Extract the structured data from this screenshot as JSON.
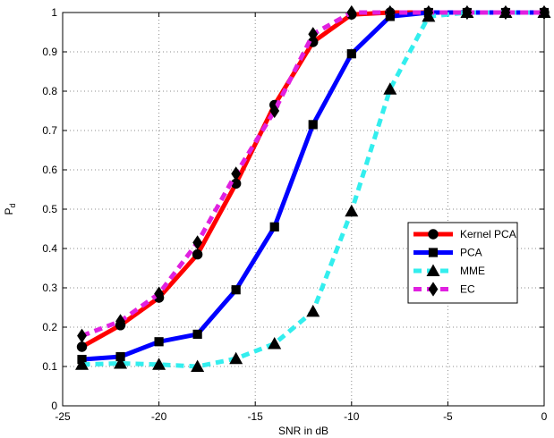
{
  "chart_data": {
    "type": "line",
    "xlabel": "SNR in dB",
    "ylabel": "P",
    "ylabel_sub": "d",
    "xlim": [
      -25,
      0
    ],
    "ylim": [
      0,
      1
    ],
    "xticks": [
      -25,
      -20,
      -15,
      -10,
      -5,
      0
    ],
    "yticks": [
      0,
      0.1,
      0.2,
      0.3,
      0.4,
      0.5,
      0.6,
      0.7,
      0.8,
      0.9,
      1
    ],
    "xtick_labels": [
      "-25",
      "-20",
      "-15",
      "-10",
      "-5",
      "0"
    ],
    "ytick_labels": [
      "0",
      "0.1",
      "0.2",
      "0.3",
      "0.4",
      "0.5",
      "0.6",
      "0.7",
      "0.8",
      "0.9",
      "1"
    ],
    "grid": true,
    "legend_position": "right",
    "x": [
      -24,
      -22,
      -20,
      -18,
      -16,
      -14,
      -12,
      -10,
      -8,
      -6,
      -4,
      -2,
      0
    ],
    "series": [
      {
        "name": "Kernel PCA",
        "color": "#ff0000",
        "marker": "circle",
        "dash": "solid",
        "values": [
          0.15,
          0.205,
          0.275,
          0.385,
          0.565,
          0.765,
          0.925,
          0.995,
          1.0,
          1.0,
          1.0,
          1.0,
          1.0
        ]
      },
      {
        "name": "PCA",
        "color": "#0000ff",
        "marker": "square",
        "dash": "solid",
        "values": [
          0.118,
          0.125,
          0.163,
          0.182,
          0.295,
          0.455,
          0.715,
          0.895,
          0.99,
          1.0,
          1.0,
          1.0,
          1.0
        ]
      },
      {
        "name": "MME",
        "color": "#33eeee",
        "marker": "triangle",
        "dash": "dashed",
        "values": [
          0.105,
          0.108,
          0.105,
          0.1,
          0.12,
          0.158,
          0.24,
          0.495,
          0.805,
          0.99,
          1.0,
          1.0,
          1.0
        ]
      },
      {
        "name": "EC",
        "color": "#e020e0",
        "marker": "diamond",
        "dash": "dashed",
        "values": [
          0.178,
          0.215,
          0.285,
          0.415,
          0.59,
          0.75,
          0.945,
          1.0,
          1.0,
          1.0,
          1.0,
          1.0,
          1.0
        ]
      }
    ]
  }
}
